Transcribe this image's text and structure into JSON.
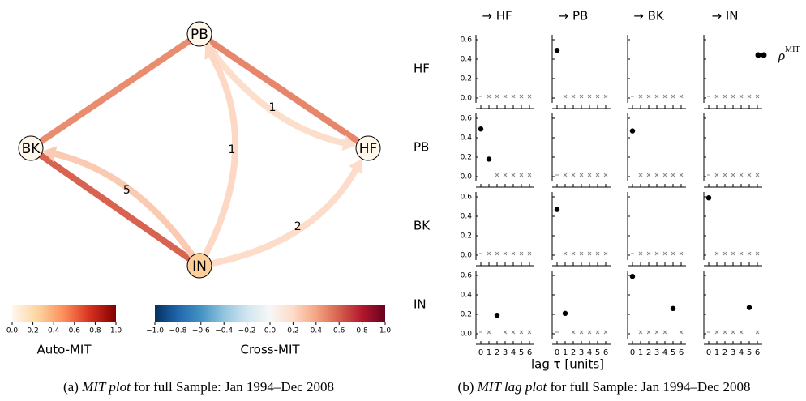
{
  "chart_data": [
    {
      "type": "network",
      "nodes": [
        {
          "label": "PB",
          "auto_mit": null
        },
        {
          "label": "HF",
          "auto_mit": null
        },
        {
          "label": "BK",
          "auto_mit": null
        },
        {
          "label": "IN",
          "auto_mit": 0.27
        }
      ],
      "edges": [
        {
          "source": 0,
          "target": 1,
          "cross_mit": 0.49
        },
        {
          "source": 0,
          "target": 2,
          "cross_mit": 0.47
        },
        {
          "source": 2,
          "target": 3,
          "cross_mit": 0.59
        },
        {
          "source": 0,
          "target": 1,
          "cross_mit": 0.18,
          "lag_label": "1"
        },
        {
          "source": 3,
          "target": 0,
          "cross_mit": 0.21,
          "lag_label": "1"
        },
        {
          "source": 3,
          "target": 1,
          "cross_mit": 0.19,
          "lag_label": "2"
        },
        {
          "source": 3,
          "target": 2,
          "cross_mit": 0.26,
          "lag_label": "5"
        }
      ],
      "colorbars": [
        {
          "label": "Auto-MIT",
          "lim": [
            0,
            1
          ],
          "colors": [
            "#fff7ec",
            "#fdd49e",
            "#fc8d59",
            "#d7301f",
            "#7f0000"
          ],
          "ticks": [
            {
              "value": 0,
              "label": "0.0"
            },
            0.2,
            0.4,
            0.6,
            0.8,
            {
              "value": 1,
              "label": "1.0"
            }
          ]
        },
        {
          "label": "Cross-MIT",
          "lim": [
            -1,
            1
          ],
          "colors": [
            "#053061",
            "#2166ac",
            "#4393c3",
            "#92c5de",
            "#d1e5f0",
            "#f7f7f7",
            "#fddbc7",
            "#f4a582",
            "#d6604d",
            "#b2182b",
            "#67001f"
          ],
          "ticks": [
            {
              "value": -1,
              "label": "−1.0"
            },
            {
              "value": -0.8,
              "label": "−0.8"
            },
            {
              "value": -0.6,
              "label": "−0.6"
            },
            {
              "value": -0.4,
              "label": "−0.4"
            },
            {
              "value": -0.2,
              "label": "−0.2"
            },
            {
              "value": 0,
              "label": "0.0"
            },
            0.2,
            0.4,
            0.6,
            0.8,
            {
              "value": 1,
              "label": "1.0"
            }
          ]
        }
      ],
      "caption": {
        "prefix": "(a)",
        "emphasis": "MIT plot",
        "text": "for full Sample: Jan 1994–Dec 2008"
      }
    },
    {
      "type": "scatter-grid",
      "column_titles": [
        "→ HF",
        "→ PB",
        "→ BK",
        "→ IN"
      ],
      "row_labels": [
        "HF",
        "PB",
        "BK",
        "IN"
      ],
      "xlabel": "lag τ [units]",
      "legend": {
        "symbol": "ρ",
        "superscript": "MIT"
      },
      "point_color": "#000000",
      "cross_color": "#888888",
      "xlim": [
        -0.6,
        6.6
      ],
      "xticks": [
        0,
        1,
        2,
        3,
        4,
        5,
        6
      ],
      "ylim": [
        -0.05,
        0.65
      ],
      "yticks": [
        {
          "value": 0,
          "label": "0.0"
        },
        0.2,
        0.4,
        0.6
      ],
      "panels": [
        [
          {
            "values": [
              null,
              null,
              null,
              null,
              null,
              null,
              null
            ],
            "crosses": [
              null,
              0,
              0,
              0,
              0,
              0,
              0
            ]
          },
          {
            "values": [
              0.49,
              null,
              null,
              null,
              null,
              null,
              null
            ],
            "crosses": [
              null,
              0,
              0,
              0,
              0,
              0,
              0
            ]
          },
          {
            "values": [
              null,
              null,
              null,
              null,
              null,
              null,
              null
            ],
            "crosses": [
              null,
              0,
              0,
              0,
              0,
              0,
              0
            ]
          },
          {
            "values": [
              null,
              null,
              null,
              null,
              null,
              null,
              null
            ],
            "crosses": [
              null,
              0,
              0,
              0,
              0,
              0,
              0
            ]
          }
        ],
        [
          {
            "values": [
              0.49,
              0.18,
              null,
              null,
              null,
              null,
              null
            ],
            "crosses": [
              null,
              null,
              0,
              0,
              0,
              0,
              0
            ]
          },
          {
            "values": [
              null,
              null,
              null,
              null,
              null,
              null,
              null
            ],
            "crosses": [
              null,
              0,
              0,
              0,
              0,
              0,
              0
            ]
          },
          {
            "values": [
              0.47,
              null,
              null,
              null,
              null,
              null,
              null
            ],
            "crosses": [
              null,
              0,
              0,
              0,
              0,
              0,
              0
            ]
          },
          {
            "values": [
              null,
              null,
              null,
              null,
              null,
              null,
              null
            ],
            "crosses": [
              null,
              0,
              0,
              0,
              0,
              0,
              0
            ]
          }
        ],
        [
          {
            "values": [
              null,
              null,
              null,
              null,
              null,
              null,
              null
            ],
            "crosses": [
              null,
              0,
              0,
              0,
              0,
              0,
              0
            ]
          },
          {
            "values": [
              0.47,
              null,
              null,
              null,
              null,
              null,
              null
            ],
            "crosses": [
              null,
              0,
              0,
              0,
              0,
              0,
              0
            ]
          },
          {
            "values": [
              null,
              null,
              null,
              null,
              null,
              null,
              null
            ],
            "crosses": [
              null,
              0,
              0,
              0,
              0,
              0,
              0
            ]
          },
          {
            "values": [
              0.59,
              null,
              null,
              null,
              null,
              null,
              null
            ],
            "crosses": [
              null,
              0,
              0,
              0,
              0,
              0,
              0
            ]
          }
        ],
        [
          {
            "values": [
              null,
              null,
              0.19,
              null,
              null,
              null,
              null
            ],
            "crosses": [
              null,
              0,
              null,
              0,
              0,
              0,
              0
            ]
          },
          {
            "values": [
              null,
              0.21,
              null,
              null,
              null,
              null,
              null
            ],
            "crosses": [
              null,
              null,
              0,
              0,
              0,
              0,
              0
            ]
          },
          {
            "values": [
              0.59,
              null,
              null,
              null,
              null,
              0.26,
              null
            ],
            "crosses": [
              null,
              0,
              0,
              0,
              0,
              null,
              0
            ]
          },
          {
            "values": [
              null,
              null,
              null,
              null,
              null,
              0.27,
              null
            ],
            "crosses": [
              null,
              0,
              0,
              0,
              0,
              null,
              0
            ]
          }
        ]
      ],
      "caption": {
        "prefix": "(b)",
        "emphasis": "MIT lag plot",
        "text": "for full Sample: Jan 1994–Dec 2008"
      }
    }
  ]
}
